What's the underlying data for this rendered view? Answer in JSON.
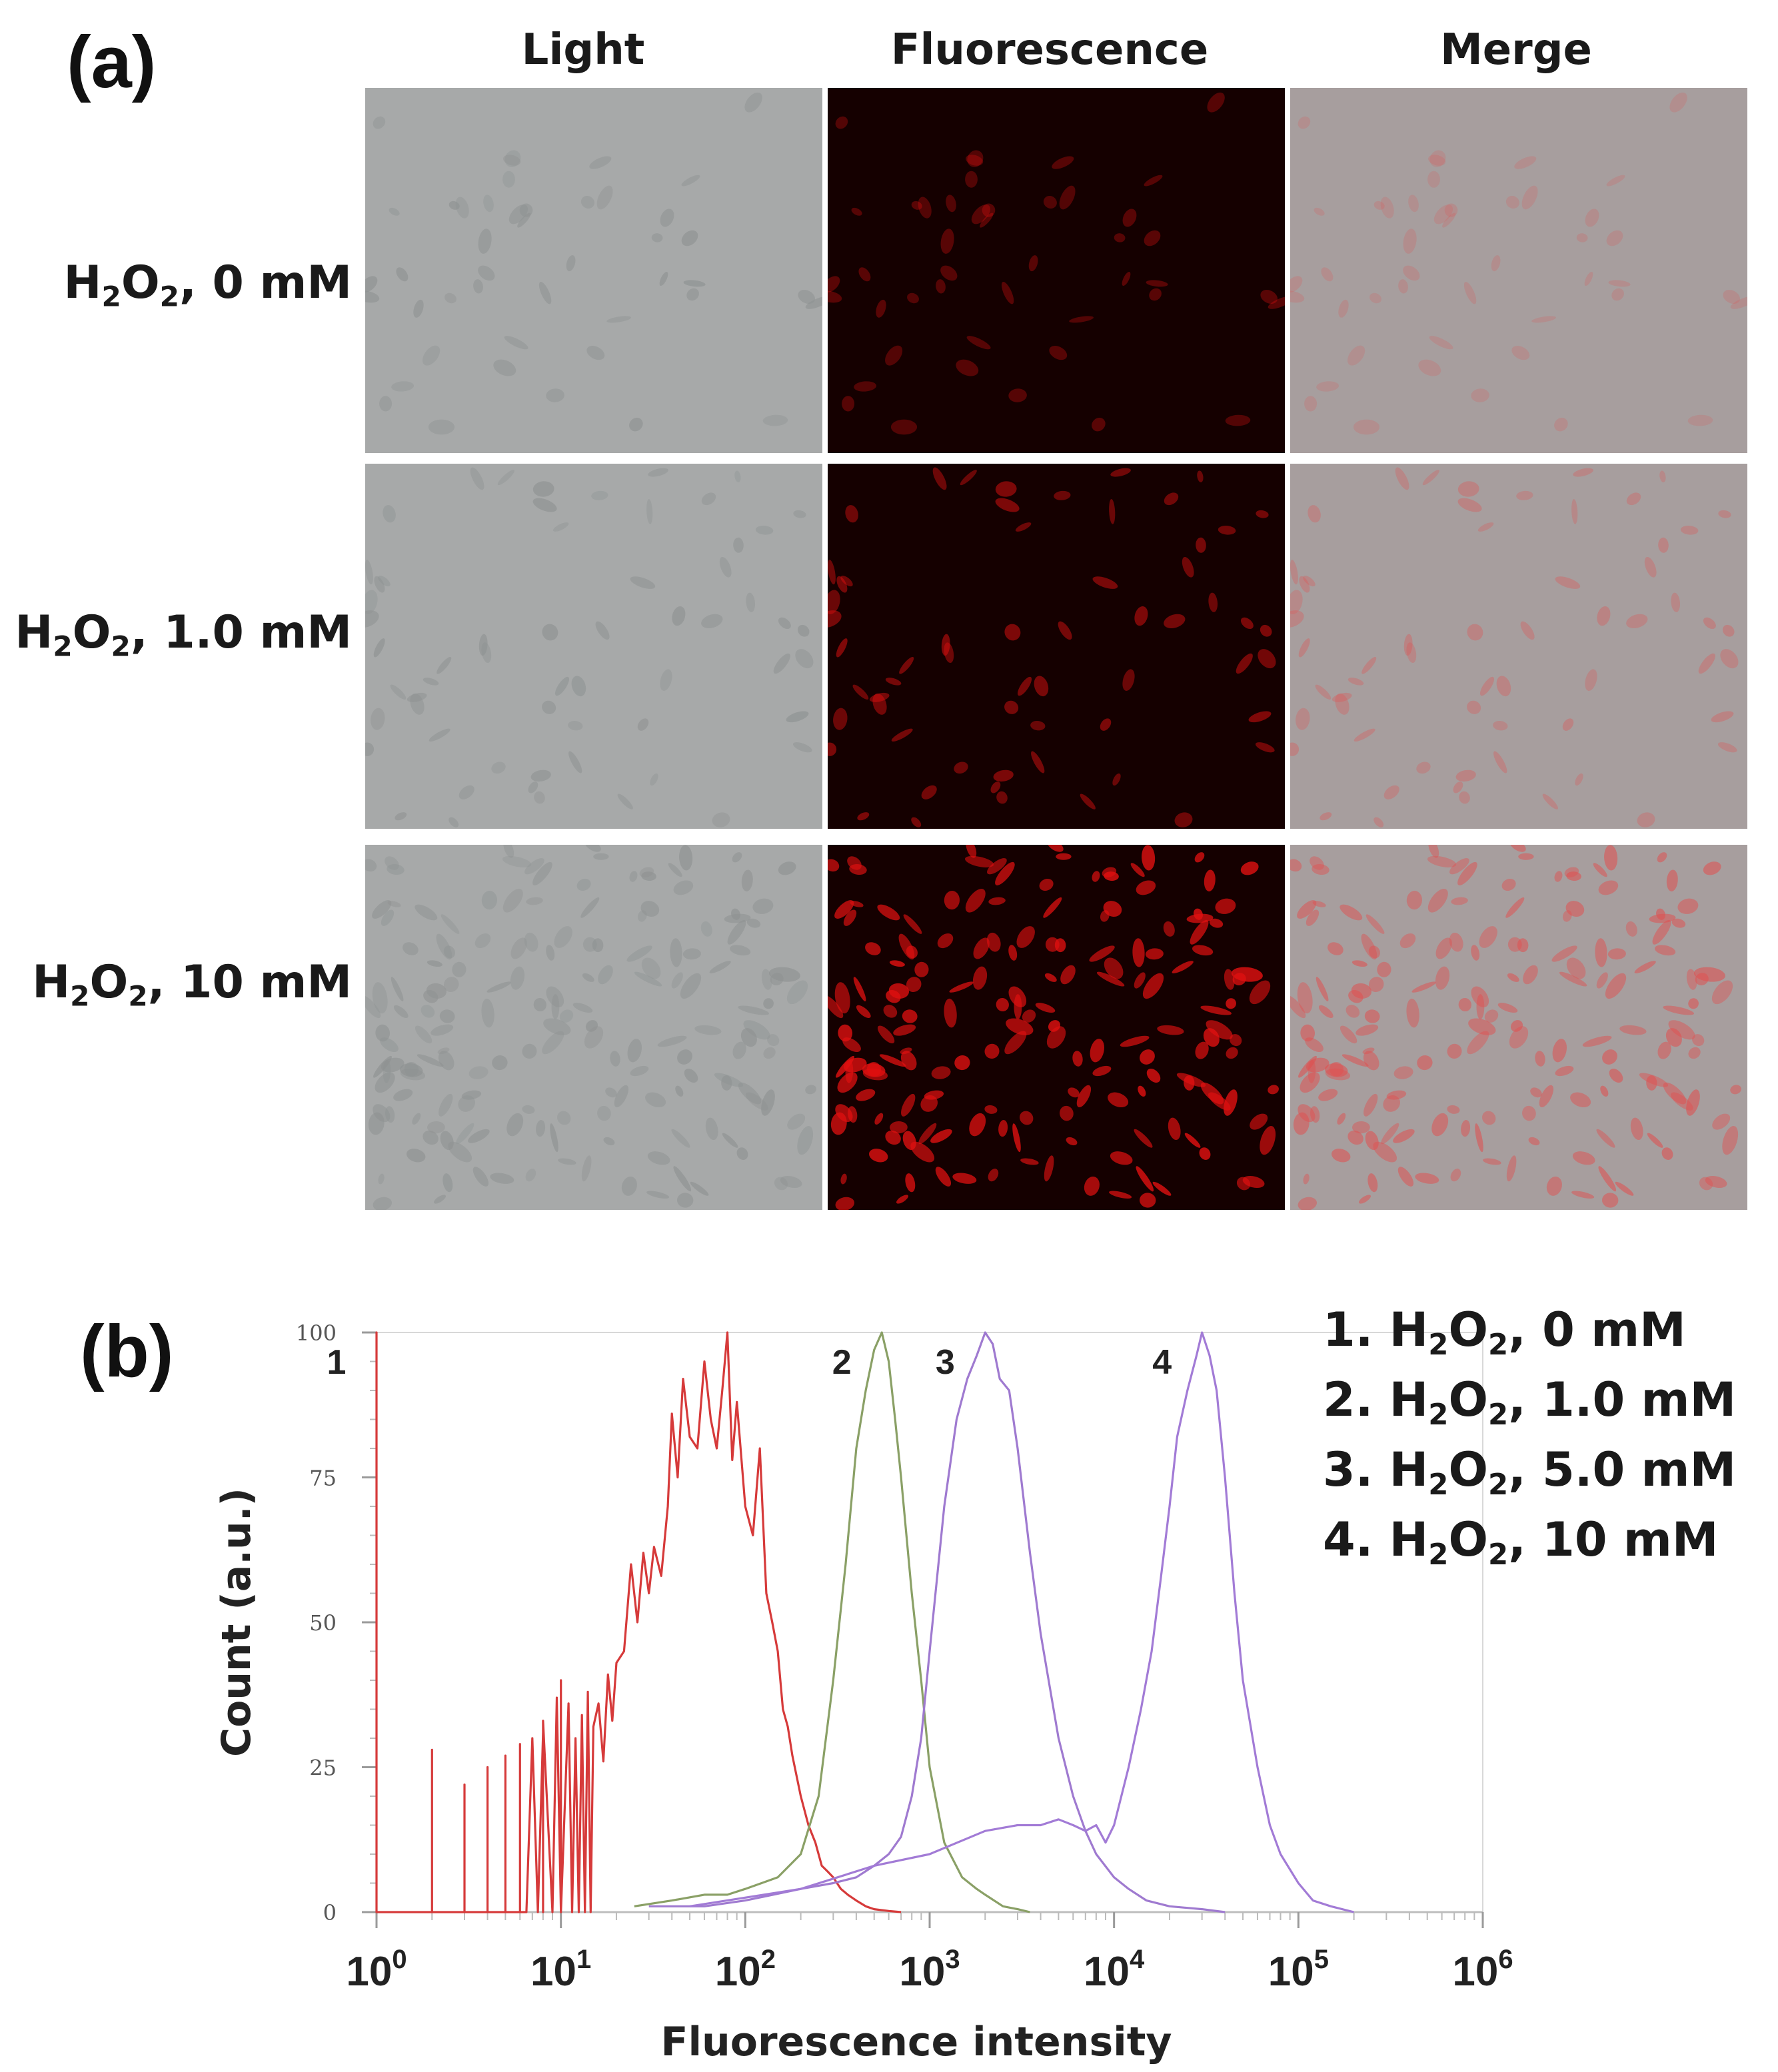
{
  "panel_a": {
    "label": "(a)",
    "columns": [
      "Light",
      "Fluorescence",
      "Merge"
    ],
    "rows": [
      {
        "prefix": "H",
        "sub1": "2",
        "mid": "O",
        "sub2": "2",
        "suffix": ", 0 mM",
        "intensity": 0.15
      },
      {
        "prefix": "H",
        "sub1": "2",
        "mid": "O",
        "sub2": "2",
        "suffix": ", 1.0 mM",
        "intensity": 0.45
      },
      {
        "prefix": "H",
        "sub1": "2",
        "mid": "O",
        "sub2": "2",
        "suffix": ", 10 mM",
        "intensity": 0.95
      }
    ],
    "colors": {
      "light": "#a7a9a9",
      "fluor_bg": "#150000",
      "fluor_cell": "#e01010",
      "merge": "#a79e9e"
    }
  },
  "panel_b": {
    "label": "(b)",
    "legend": [
      {
        "prefix": "1. H",
        "sub1": "2",
        "mid": "O",
        "sub2": "2",
        "suffix": ", 0 mM"
      },
      {
        "prefix": "2. H",
        "sub1": "2",
        "mid": "O",
        "sub2": "2",
        "suffix": ", 1.0 mM"
      },
      {
        "prefix": "3. H",
        "sub1": "2",
        "mid": "O",
        "sub2": "2",
        "suffix": ", 5.0 mM"
      },
      {
        "prefix": "4. H",
        "sub1": "2",
        "mid": "O",
        "sub2": "2",
        "suffix": ", 10 mM"
      }
    ]
  },
  "chart_data": {
    "type": "line",
    "title": "",
    "xlabel": "Fluorescence intensity",
    "ylabel": "Count (a.u.)",
    "x_scale": "log",
    "xlim": [
      1,
      1000000
    ],
    "ylim": [
      0,
      100
    ],
    "x_ticks": [
      1,
      10,
      100,
      1000,
      10000,
      100000,
      1000000
    ],
    "x_tick_labels": [
      {
        "base": "10",
        "exp": "0"
      },
      {
        "base": "10",
        "exp": "1"
      },
      {
        "base": "10",
        "exp": "2"
      },
      {
        "base": "10",
        "exp": "3"
      },
      {
        "base": "10",
        "exp": "4"
      },
      {
        "base": "10",
        "exp": "5"
      },
      {
        "base": "10",
        "exp": "6"
      }
    ],
    "y_ticks": [
      0,
      25,
      50,
      75,
      100
    ],
    "y_tick_labels": [
      "0",
      "25",
      "50",
      "75",
      "100"
    ],
    "grid": false,
    "legend_position": "top-right",
    "series": [
      {
        "name": "1. H2O2, 0 mM",
        "peak_label": "1",
        "color": "#d63a3a",
        "x": [
          1,
          1,
          1,
          1.3,
          2,
          2,
          2,
          2.4,
          3,
          3,
          3,
          3.3,
          4,
          4,
          4,
          4.4,
          5,
          5,
          5,
          5.5,
          6,
          6,
          6,
          6.5,
          7,
          7.5,
          8,
          8,
          8,
          9,
          9.5,
          10,
          10,
          10,
          11,
          11.5,
          12,
          12.5,
          13,
          13.5,
          14,
          14.5,
          15,
          16,
          17,
          18,
          19,
          20,
          22,
          24,
          26,
          28,
          30,
          32,
          35,
          38,
          40,
          43,
          46,
          50,
          55,
          60,
          65,
          70,
          75,
          80,
          85,
          90,
          100,
          110,
          120,
          130,
          140,
          150,
          160,
          170,
          180,
          200,
          220,
          240,
          260,
          280,
          300,
          330,
          360,
          400,
          450,
          500,
          600,
          700
        ],
        "y": [
          0,
          100,
          0,
          0,
          0,
          28,
          0,
          0,
          0,
          22,
          0,
          0,
          0,
          25,
          0,
          0,
          0,
          27,
          0,
          0,
          0,
          29,
          0,
          0,
          30,
          0,
          31,
          0,
          33,
          0,
          37,
          0,
          40,
          0,
          36,
          0,
          30,
          0,
          34,
          0,
          38,
          0,
          32,
          36,
          26,
          41,
          33,
          43,
          45,
          60,
          50,
          62,
          55,
          63,
          58,
          70,
          86,
          75,
          92,
          82,
          80,
          95,
          85,
          80,
          90,
          100,
          78,
          88,
          70,
          65,
          80,
          55,
          50,
          45,
          35,
          32,
          27,
          20,
          15,
          12,
          8,
          7,
          6,
          4,
          3,
          2,
          1,
          0.5,
          0.2,
          0
        ]
      },
      {
        "name": "2. H2O2, 1.0 mM",
        "peak_label": "2",
        "color": "#8aa066",
        "x": [
          25,
          40,
          60,
          80,
          100,
          150,
          200,
          250,
          300,
          350,
          400,
          450,
          500,
          550,
          600,
          650,
          700,
          800,
          900,
          1000,
          1200,
          1500,
          1800,
          2000,
          2500,
          3000,
          3500
        ],
        "y": [
          1,
          2,
          3,
          3,
          4,
          6,
          10,
          20,
          40,
          60,
          80,
          90,
          97,
          100,
          95,
          85,
          75,
          55,
          40,
          25,
          12,
          6,
          4,
          3,
          1,
          0.5,
          0
        ]
      },
      {
        "name": "3. H2O2, 5.0 mM",
        "peak_label": "3",
        "color": "#9f7ad0",
        "x": [
          30,
          60,
          100,
          200,
          300,
          400,
          500,
          600,
          700,
          800,
          900,
          1000,
          1200,
          1400,
          1600,
          1800,
          2000,
          2200,
          2400,
          2700,
          3000,
          3500,
          4000,
          5000,
          6000,
          7000,
          8000,
          10000,
          12000,
          15000,
          20000,
          30000,
          40000
        ],
        "y": [
          1,
          1,
          2,
          4,
          5,
          6,
          8,
          10,
          13,
          20,
          30,
          45,
          70,
          85,
          92,
          96,
          100,
          98,
          92,
          90,
          80,
          62,
          48,
          30,
          20,
          14,
          10,
          6,
          4,
          2,
          1,
          0.5,
          0
        ]
      },
      {
        "name": "4. H2O2, 10 mM",
        "peak_label": "4",
        "color": "#a27bd6",
        "x": [
          50,
          200,
          500,
          1000,
          2000,
          3000,
          4000,
          5000,
          6000,
          7000,
          8000,
          9000,
          10000,
          12000,
          14000,
          16000,
          18000,
          20000,
          22000,
          25000,
          28000,
          30000,
          33000,
          36000,
          40000,
          45000,
          50000,
          60000,
          70000,
          80000,
          100000,
          120000,
          150000,
          200000
        ],
        "y": [
          1,
          4,
          8,
          10,
          14,
          15,
          15,
          16,
          15,
          14,
          15,
          12,
          15,
          25,
          35,
          45,
          58,
          70,
          82,
          90,
          96,
          100,
          96,
          90,
          75,
          55,
          40,
          25,
          15,
          10,
          5,
          2,
          1,
          0
        ]
      }
    ]
  }
}
